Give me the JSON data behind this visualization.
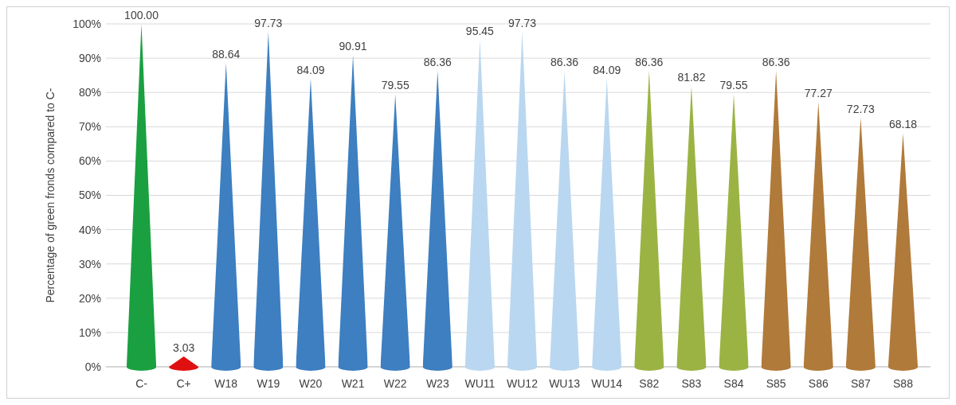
{
  "chart_data": {
    "type": "bar",
    "ylabel": "Percentage of green fronds compared to C-",
    "categories": [
      "C-",
      "C+",
      "W18",
      "W19",
      "W20",
      "W21",
      "W22",
      "W23",
      "WU11",
      "WU12",
      "WU13",
      "WU14",
      "S82",
      "S83",
      "S84",
      "S85",
      "S86",
      "S87",
      "S88"
    ],
    "values": [
      100,
      3.03,
      88.64,
      97.73,
      84.09,
      90.91,
      79.55,
      86.36,
      95.45,
      97.73,
      86.36,
      84.09,
      86.36,
      81.82,
      79.55,
      86.36,
      77.27,
      72.73,
      68.18
    ],
    "value_labels": [
      "100.00",
      "3.03",
      "88.64",
      "97.73",
      "84.09",
      "90.91",
      "79.55",
      "86.36",
      "95.45",
      "97.73",
      "86.36",
      "84.09",
      "86.36",
      "81.82",
      "79.55",
      "86.36",
      "77.27",
      "72.73",
      "68.18"
    ],
    "colors": [
      "#1aa040",
      "#e01010",
      "#3d7fc0",
      "#3d7fc0",
      "#3d7fc0",
      "#3d7fc0",
      "#3d7fc0",
      "#3d7fc0",
      "#b9d7f0",
      "#b9d7f0",
      "#b9d7f0",
      "#b9d7f0",
      "#9bb343",
      "#9bb343",
      "#9bb343",
      "#b07a3a",
      "#b07a3a",
      "#b07a3a",
      "#b07a3a"
    ],
    "ylim": [
      0,
      100
    ],
    "yticks": [
      {
        "value": 0,
        "label": "0%"
      },
      {
        "value": 10,
        "label": "10%"
      },
      {
        "value": 20,
        "label": "20%"
      },
      {
        "value": 30,
        "label": "30%"
      },
      {
        "value": 40,
        "label": "40%"
      },
      {
        "value": 50,
        "label": "50%"
      },
      {
        "value": 60,
        "label": "60%"
      },
      {
        "value": 70,
        "label": "70%"
      },
      {
        "value": 80,
        "label": "80%"
      },
      {
        "value": 90,
        "label": "90%"
      },
      {
        "value": 100,
        "label": "100%"
      }
    ],
    "grid": "y"
  }
}
